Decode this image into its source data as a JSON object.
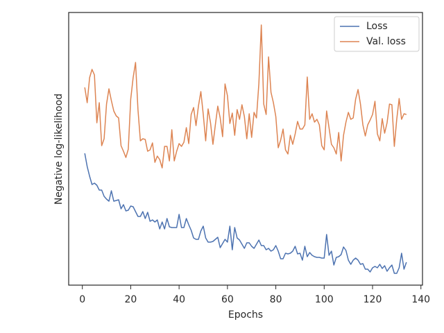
{
  "chart_data": {
    "type": "line",
    "x_label": "Epochs",
    "y_label": "Negative log-likelihood",
    "x": [
      1,
      2,
      3,
      4,
      5,
      6,
      7,
      8,
      9,
      10,
      11,
      12,
      13,
      14,
      15,
      16,
      17,
      18,
      19,
      20,
      21,
      22,
      23,
      24,
      25,
      26,
      27,
      28,
      29,
      30,
      31,
      32,
      33,
      34,
      35,
      36,
      37,
      38,
      39,
      40,
      41,
      42,
      43,
      44,
      45,
      46,
      47,
      48,
      49,
      50,
      51,
      52,
      53,
      54,
      55,
      56,
      57,
      58,
      59,
      60,
      61,
      62,
      63,
      64,
      65,
      66,
      67,
      68,
      69,
      70,
      71,
      72,
      73,
      74,
      75,
      76,
      77,
      78,
      79,
      80,
      81,
      82,
      83,
      84,
      85,
      86,
      87,
      88,
      89,
      90,
      91,
      92,
      93,
      94,
      95,
      96,
      97,
      98,
      99,
      100,
      101,
      102,
      103,
      104,
      105,
      106,
      107,
      108,
      109,
      110,
      111,
      112,
      113,
      114,
      115,
      116,
      117,
      118,
      119,
      120,
      121,
      122,
      123,
      124,
      125,
      126,
      127,
      128,
      129,
      130,
      131,
      132,
      133,
      134
    ],
    "series": [
      {
        "name": "Loss",
        "color": "#4c72b0",
        "values": [
          190,
          171,
          157,
          145,
          147,
          144,
          137,
          137,
          128,
          124,
          121,
          136,
          121,
          122,
          123,
          110,
          116,
          107,
          108,
          114,
          113,
          106,
          99,
          99,
          106,
          96,
          105,
          92,
          94,
          91,
          94,
          81,
          91,
          81,
          96,
          84,
          83,
          83,
          83,
          102,
          83,
          83,
          96,
          87,
          79,
          68,
          66,
          66,
          78,
          85,
          68,
          62,
          62,
          63,
          66,
          69,
          54,
          60,
          66,
          62,
          85,
          51,
          83,
          68,
          65,
          59,
          53,
          61,
          61,
          56,
          53,
          59,
          65,
          57,
          57,
          51,
          53,
          49,
          51,
          57,
          49,
          38,
          38,
          46,
          45,
          46,
          49,
          56,
          45,
          46,
          36,
          56,
          41,
          47,
          43,
          41,
          40,
          40,
          39,
          39,
          73,
          43,
          49,
          29,
          40,
          41,
          44,
          55,
          50,
          36,
          30,
          36,
          39,
          36,
          30,
          31,
          23,
          23,
          19,
          25,
          27,
          25,
          30,
          24,
          28,
          20,
          25,
          29,
          17,
          17,
          25,
          46,
          23,
          33
        ]
      },
      {
        "name": "Val. loss",
        "color": "#dd8452",
        "values": [
          285,
          263,
          299,
          311,
          303,
          234,
          263,
          201,
          211,
          261,
          283,
          266,
          251,
          244,
          241,
          201,
          193,
          184,
          196,
          268,
          299,
          321,
          253,
          208,
          211,
          210,
          193,
          195,
          205,
          177,
          186,
          181,
          169,
          200,
          200,
          179,
          224,
          179,
          193,
          204,
          200,
          206,
          227,
          204,
          246,
          256,
          230,
          258,
          279,
          246,
          208,
          254,
          234,
          203,
          231,
          258,
          241,
          214,
          290,
          273,
          233,
          248,
          216,
          253,
          239,
          260,
          243,
          211,
          247,
          213,
          249,
          241,
          291,
          375,
          261,
          246,
          329,
          278,
          263,
          243,
          198,
          209,
          225,
          195,
          189,
          216,
          203,
          218,
          236,
          225,
          225,
          231,
          300,
          239,
          247,
          235,
          239,
          231,
          201,
          195,
          251,
          227,
          203,
          198,
          189,
          220,
          179,
          216,
          235,
          249,
          239,
          241,
          268,
          282,
          261,
          231,
          215,
          231,
          238,
          246,
          265,
          218,
          208,
          240,
          219,
          234,
          261,
          260,
          200,
          239,
          269,
          239,
          247,
          246
        ]
      }
    ],
    "xlim": [
      -5.65,
      140.65
    ],
    "xticks": [
      0,
      20,
      40,
      60,
      80,
      100,
      120,
      140
    ],
    "ylim": [
      0,
      393
    ],
    "legend": "upper right"
  }
}
